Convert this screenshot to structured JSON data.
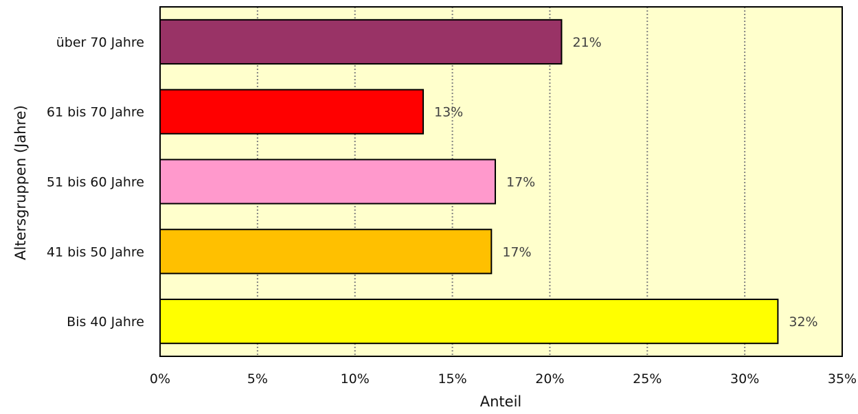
{
  "chart_data": {
    "type": "bar",
    "orientation": "horizontal",
    "categories": [
      "über 70 Jahre",
      "61 bis 70 Jahre",
      "51 bis 60 Jahre",
      "41 bis 50 Jahre",
      "Bis 40 Jahre"
    ],
    "values": [
      0.206,
      0.135,
      0.172,
      0.17,
      0.317
    ],
    "value_labels": [
      "21%",
      "13%",
      "17%",
      "17%",
      "32%"
    ],
    "bar_colors": [
      "#993366",
      "#ff0000",
      "#ff99cc",
      "#ffc000",
      "#ffff00"
    ],
    "xlabel": "Anteil",
    "ylabel": "Altersgruppen (Jahre)",
    "xlim": [
      0,
      0.35
    ],
    "x_ticks": [
      0,
      0.05,
      0.1,
      0.15,
      0.2,
      0.25,
      0.3,
      0.35
    ],
    "x_tick_labels": [
      "0%",
      "5%",
      "10%",
      "15%",
      "20%",
      "25%",
      "30%",
      "35%"
    ],
    "grid": "vertical dotted",
    "plot_background": "#ffffcc",
    "legend": "none"
  }
}
